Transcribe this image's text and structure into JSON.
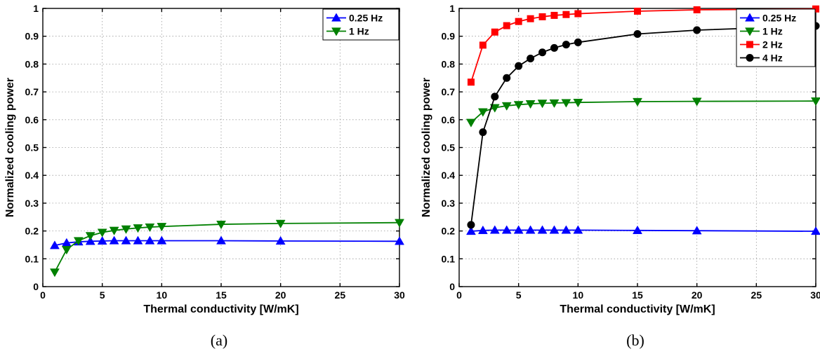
{
  "chart_data": [
    {
      "type": "line",
      "caption": "(a)",
      "xlabel": "Thermal conductivity [W/mK]",
      "ylabel": "Normalized cooling power",
      "xlim": [
        0,
        30
      ],
      "ylim": [
        0,
        1
      ],
      "xticks": [
        0,
        5,
        10,
        15,
        20,
        25,
        30
      ],
      "yticks": [
        0,
        0.1,
        0.2,
        0.3,
        0.4,
        0.5,
        0.6,
        0.7,
        0.8,
        0.9,
        1
      ],
      "ytick_labels": [
        "0",
        "0.1",
        "0.2",
        "0.3",
        "0.4",
        "0.5",
        "0.6",
        "0.7",
        "0.8",
        "0.9",
        "1"
      ],
      "grid": true,
      "legend_position": "top-right",
      "series": [
        {
          "name": "0.25 Hz",
          "color": "#0000ff",
          "marker": "triangle-up",
          "x": [
            1,
            2,
            3,
            4,
            5,
            6,
            7,
            8,
            9,
            10,
            15,
            20,
            30
          ],
          "y": [
            0.148,
            0.157,
            0.161,
            0.163,
            0.164,
            0.165,
            0.165,
            0.165,
            0.165,
            0.165,
            0.165,
            0.164,
            0.163
          ]
        },
        {
          "name": "1 Hz",
          "color": "#008000",
          "marker": "triangle-down",
          "x": [
            1,
            2,
            3,
            4,
            5,
            6,
            7,
            8,
            9,
            10,
            15,
            20,
            30
          ],
          "y": [
            0.052,
            0.133,
            0.165,
            0.183,
            0.195,
            0.202,
            0.207,
            0.211,
            0.214,
            0.216,
            0.224,
            0.227,
            0.23
          ]
        }
      ]
    },
    {
      "type": "line",
      "caption": "(b)",
      "xlabel": "Thermal conductivity [W/mK]",
      "ylabel": "Normalized cooling power",
      "xlim": [
        0,
        30
      ],
      "ylim": [
        0,
        1
      ],
      "xticks": [
        0,
        5,
        10,
        15,
        20,
        25,
        30
      ],
      "yticks": [
        0,
        0.1,
        0.2,
        0.3,
        0.4,
        0.5,
        0.6,
        0.7,
        0.8,
        0.9,
        1
      ],
      "ytick_labels": [
        "0",
        "0.1",
        "0.2",
        "0.3",
        "0.4",
        "0.5",
        "0.6",
        "0.7",
        "0.8",
        "0.9",
        "1"
      ],
      "grid": true,
      "legend_position": "top-right",
      "series": [
        {
          "name": "0.25 Hz",
          "color": "#0000ff",
          "marker": "triangle-up",
          "x": [
            1,
            2,
            3,
            4,
            5,
            6,
            7,
            8,
            9,
            10,
            15,
            20,
            30
          ],
          "y": [
            0.199,
            0.202,
            0.203,
            0.203,
            0.203,
            0.203,
            0.203,
            0.203,
            0.203,
            0.203,
            0.202,
            0.201,
            0.199
          ]
        },
        {
          "name": "1 Hz",
          "color": "#008000",
          "marker": "triangle-down",
          "x": [
            1,
            2,
            3,
            4,
            5,
            6,
            7,
            8,
            9,
            10,
            15,
            20,
            30
          ],
          "y": [
            0.59,
            0.628,
            0.643,
            0.65,
            0.654,
            0.657,
            0.659,
            0.66,
            0.661,
            0.662,
            0.665,
            0.666,
            0.667
          ]
        },
        {
          "name": "2 Hz",
          "color": "#ff0000",
          "marker": "square",
          "x": [
            1,
            2,
            3,
            4,
            5,
            6,
            7,
            8,
            9,
            10,
            15,
            20,
            30
          ],
          "y": [
            0.735,
            0.868,
            0.915,
            0.938,
            0.953,
            0.963,
            0.97,
            0.975,
            0.978,
            0.981,
            0.99,
            0.995,
            0.998
          ]
        },
        {
          "name": "4 Hz",
          "color": "#000000",
          "marker": "circle",
          "x": [
            1,
            2,
            3,
            4,
            5,
            6,
            7,
            8,
            9,
            10,
            15,
            20,
            30
          ],
          "y": [
            0.222,
            0.555,
            0.683,
            0.75,
            0.793,
            0.82,
            0.842,
            0.858,
            0.87,
            0.878,
            0.908,
            0.922,
            0.937
          ]
        }
      ]
    }
  ]
}
